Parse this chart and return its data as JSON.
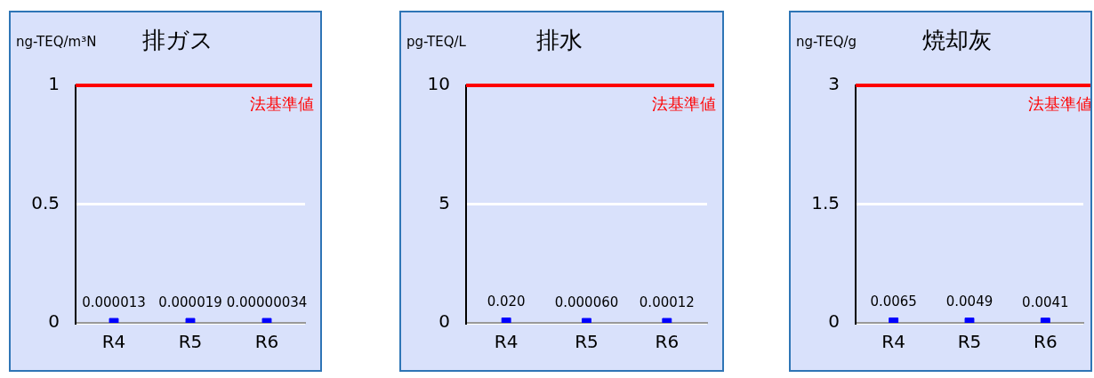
{
  "chart_data": [
    {
      "type": "scatter",
      "title": "排ガス",
      "ylabel": "ng-TEQ/m³N",
      "categories": [
        "R4",
        "R5",
        "R6"
      ],
      "values": [
        1.3e-05,
        1.9e-05,
        3.4e-07
      ],
      "value_labels": [
        "0.000013",
        "0.000019",
        "0.00000034"
      ],
      "color": "#0000ff",
      "marker": "square",
      "ylim": [
        0,
        1
      ],
      "yticks": [
        0,
        0.5,
        1
      ],
      "grid": "y",
      "ref_lines": [
        {
          "axis": "y",
          "value": 1,
          "label": "法基準値",
          "color": "#ff0000"
        }
      ]
    },
    {
      "type": "scatter",
      "title": "排水",
      "ylabel": "pg-TEQ/L",
      "categories": [
        "R4",
        "R5",
        "R6"
      ],
      "values": [
        0.02,
        6e-05,
        0.00012
      ],
      "value_labels": [
        "0.020",
        "0.000060",
        "0.00012"
      ],
      "color": "#0000ff",
      "marker": "square",
      "ylim": [
        0,
        10
      ],
      "yticks": [
        0,
        5,
        10
      ],
      "grid": "y",
      "ref_lines": [
        {
          "axis": "y",
          "value": 10,
          "label": "法基準値",
          "color": "#ff0000"
        }
      ]
    },
    {
      "type": "scatter",
      "title": "焼却灰",
      "ylabel": "ng-TEQ/g",
      "categories": [
        "R4",
        "R5",
        "R6"
      ],
      "values": [
        0.0065,
        0.0049,
        0.0041
      ],
      "value_labels": [
        "0.0065",
        "0.0049",
        "0.0041"
      ],
      "color": "#0000ff",
      "marker": "square",
      "ylim": [
        0,
        3
      ],
      "yticks": [
        0,
        1.5,
        3
      ],
      "grid": "y",
      "ref_lines": [
        {
          "axis": "y",
          "value": 3,
          "label": "法基準値",
          "color": "#ff0000"
        }
      ]
    }
  ]
}
